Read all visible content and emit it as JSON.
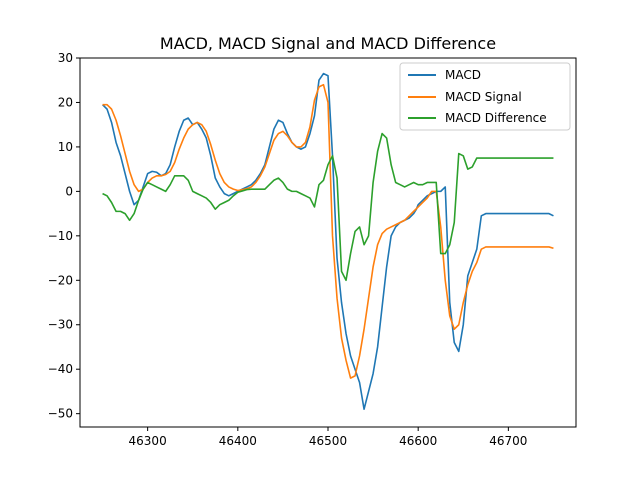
{
  "chart_data": {
    "type": "line",
    "title": "MACD, MACD Signal and MACD Difference",
    "xlabel": "",
    "ylabel": "",
    "xlim": [
      46225,
      46775
    ],
    "ylim": [
      -53,
      30
    ],
    "xticks": [
      46300,
      46400,
      46500,
      46600,
      46700
    ],
    "yticks": [
      30,
      20,
      10,
      0,
      -10,
      -20,
      -30,
      -40,
      -50
    ],
    "grid": false,
    "legend_position": "top-right",
    "series": [
      {
        "name": "MACD",
        "color": "#1f77b4",
        "x": [
          46250,
          46255,
          46260,
          46265,
          46270,
          46275,
          46280,
          46285,
          46290,
          46295,
          46300,
          46305,
          46310,
          46315,
          46320,
          46325,
          46330,
          46335,
          46340,
          46345,
          46350,
          46355,
          46360,
          46365,
          46370,
          46375,
          46380,
          46385,
          46390,
          46395,
          46400,
          46405,
          46410,
          46415,
          46420,
          46425,
          46430,
          46435,
          46440,
          46445,
          46450,
          46455,
          46460,
          46465,
          46470,
          46475,
          46480,
          46485,
          46490,
          46495,
          46500,
          46505,
          46510,
          46515,
          46520,
          46525,
          46530,
          46535,
          46540,
          46545,
          46550,
          46555,
          46560,
          46565,
          46570,
          46575,
          46580,
          46585,
          46590,
          46595,
          46598,
          46600,
          46605,
          46610,
          46615,
          46620,
          46625,
          46630,
          46635,
          46640,
          46645,
          46650,
          46655,
          46660,
          46665,
          46670,
          46675,
          46680,
          46685,
          46690,
          46695,
          46700,
          46705,
          46710,
          46715,
          46720,
          46725,
          46730,
          46735,
          46740,
          46745,
          46750
        ],
        "values": [
          19.5,
          18.5,
          15.5,
          11.0,
          8.0,
          4.0,
          0.0,
          -3.0,
          -2.0,
          1.0,
          4.0,
          4.5,
          4.3,
          3.5,
          4.0,
          6.0,
          10.0,
          13.5,
          16.0,
          16.5,
          15.0,
          15.5,
          14.0,
          12.0,
          8.0,
          3.0,
          1.0,
          -0.5,
          -1.0,
          -0.5,
          0.0,
          0.5,
          1.0,
          1.5,
          2.5,
          4.0,
          6.0,
          10.0,
          14.0,
          16.0,
          15.5,
          13.0,
          11.0,
          10.0,
          9.5,
          10.0,
          13.0,
          17.0,
          25.0,
          26.5,
          26.0,
          8.0,
          -15.0,
          -25.0,
          -32.0,
          -37.0,
          -40.0,
          -43.0,
          -49.0,
          -45.0,
          -41.0,
          -35.0,
          -26.0,
          -17.0,
          -10.0,
          -8.0,
          -7.0,
          -6.5,
          -6.0,
          -5.0,
          -4.0,
          -3.0,
          -2.0,
          -1.0,
          -0.5,
          0.0,
          0.0,
          1.0,
          -25.0,
          -34.0,
          -36.0,
          -30.0,
          -19.0,
          -16.0,
          -13.0,
          -5.5,
          -5.0,
          -5.0,
          -5.0,
          -5.0,
          -5.0,
          -5.0,
          -5.0,
          -5.0,
          -5.0,
          -5.0,
          -5.0,
          -5.0,
          -5.0,
          -5.0,
          -5.0,
          -5.5
        ]
      },
      {
        "name": "MACD Signal",
        "color": "#ff7f0e",
        "x": [
          46250,
          46255,
          46260,
          46265,
          46270,
          46275,
          46280,
          46285,
          46290,
          46295,
          46300,
          46305,
          46310,
          46315,
          46320,
          46325,
          46330,
          46335,
          46340,
          46345,
          46350,
          46355,
          46360,
          46365,
          46370,
          46375,
          46380,
          46385,
          46390,
          46395,
          46400,
          46405,
          46410,
          46415,
          46420,
          46425,
          46430,
          46435,
          46440,
          46445,
          46450,
          46455,
          46460,
          46465,
          46470,
          46475,
          46480,
          46485,
          46490,
          46495,
          46500,
          46505,
          46510,
          46515,
          46520,
          46525,
          46530,
          46535,
          46540,
          46545,
          46550,
          46555,
          46560,
          46565,
          46570,
          46575,
          46580,
          46585,
          46590,
          46595,
          46600,
          46605,
          46610,
          46615,
          46620,
          46625,
          46630,
          46635,
          46640,
          46645,
          46650,
          46655,
          46660,
          46665,
          46670,
          46675,
          46680,
          46685,
          46690,
          46695,
          46700,
          46705,
          46710,
          46715,
          46720,
          46725,
          46730,
          46735,
          46740,
          46745,
          46750
        ],
        "values": [
          19.5,
          19.5,
          18.5,
          16.0,
          12.5,
          8.5,
          4.5,
          1.5,
          0.0,
          0.5,
          2.0,
          3.0,
          3.5,
          3.5,
          3.8,
          4.5,
          6.5,
          9.5,
          12.0,
          14.0,
          15.0,
          15.5,
          15.0,
          13.5,
          10.5,
          7.0,
          4.0,
          2.0,
          1.0,
          0.5,
          0.2,
          0.4,
          0.6,
          1.0,
          2.0,
          3.5,
          5.5,
          8.5,
          11.5,
          13.0,
          13.5,
          12.5,
          11.0,
          10.0,
          10.0,
          11.0,
          14.5,
          20.5,
          23.5,
          24.0,
          20.0,
          -10.0,
          -24.0,
          -33.0,
          -38.0,
          -42.0,
          -41.5,
          -37.0,
          -31.0,
          -24.0,
          -17.0,
          -12.0,
          -9.5,
          -8.5,
          -8.0,
          -7.5,
          -7.0,
          -6.5,
          -5.5,
          -4.5,
          -3.5,
          -2.5,
          -1.5,
          0.0,
          0.0,
          -8.0,
          -20.0,
          -28.0,
          -31.0,
          -30.0,
          -25.0,
          -21.0,
          -18.0,
          -16.0,
          -13.0,
          -12.5,
          -12.5,
          -12.5,
          -12.5,
          -12.5,
          -12.5,
          -12.5,
          -12.5,
          -12.5,
          -12.5,
          -12.5,
          -12.5,
          -12.5,
          -12.5,
          -12.5,
          -12.8
        ]
      },
      {
        "name": "MACD Difference",
        "color": "#2ca02c",
        "x": [
          46250,
          46255,
          46260,
          46265,
          46270,
          46275,
          46280,
          46285,
          46290,
          46295,
          46300,
          46305,
          46310,
          46315,
          46320,
          46325,
          46330,
          46335,
          46340,
          46345,
          46350,
          46355,
          46360,
          46365,
          46370,
          46375,
          46380,
          46385,
          46390,
          46395,
          46400,
          46405,
          46410,
          46415,
          46420,
          46425,
          46430,
          46435,
          46440,
          46445,
          46450,
          46455,
          46460,
          46465,
          46470,
          46475,
          46480,
          46485,
          46490,
          46495,
          46500,
          46505,
          46510,
          46515,
          46520,
          46525,
          46530,
          46535,
          46540,
          46545,
          46550,
          46555,
          46560,
          46565,
          46570,
          46575,
          46580,
          46585,
          46590,
          46595,
          46600,
          46605,
          46610,
          46615,
          46620,
          46625,
          46630,
          46635,
          46640,
          46645,
          46650,
          46655,
          46660,
          46665,
          46670,
          46675,
          46680,
          46685,
          46690,
          46695,
          46700,
          46705,
          46710,
          46715,
          46720,
          46725,
          46730,
          46735,
          46740,
          46745,
          46750
        ],
        "values": [
          -0.5,
          -1.0,
          -2.5,
          -4.5,
          -4.5,
          -5.0,
          -6.5,
          -5.0,
          -2.0,
          0.5,
          2.0,
          1.5,
          1.0,
          0.5,
          0.0,
          1.5,
          3.5,
          3.5,
          3.5,
          2.5,
          0.0,
          -0.5,
          -1.0,
          -1.5,
          -2.5,
          -4.0,
          -3.0,
          -2.5,
          -2.0,
          -1.0,
          -0.2,
          0.1,
          0.4,
          0.5,
          0.5,
          0.5,
          0.5,
          1.5,
          2.5,
          3.0,
          2.0,
          0.5,
          0.0,
          0.0,
          -0.5,
          -1.0,
          -1.5,
          -3.5,
          1.5,
          2.5,
          6.0,
          8.0,
          3.0,
          -18.0,
          -20.0,
          -14.0,
          -9.0,
          -8.0,
          -12.0,
          -10.0,
          2.0,
          9.0,
          13.0,
          12.0,
          6.0,
          2.0,
          1.5,
          1.0,
          1.5,
          2.0,
          1.5,
          1.5,
          2.0,
          2.0,
          2.0,
          -14.0,
          -14.0,
          -12.0,
          -7.0,
          8.5,
          8.0,
          5.0,
          5.5,
          7.5,
          7.5,
          7.5,
          7.5,
          7.5,
          7.5,
          7.5,
          7.5,
          7.5,
          7.5,
          7.5,
          7.5,
          7.5,
          7.5,
          7.5,
          7.5,
          7.5,
          7.5
        ]
      }
    ]
  }
}
